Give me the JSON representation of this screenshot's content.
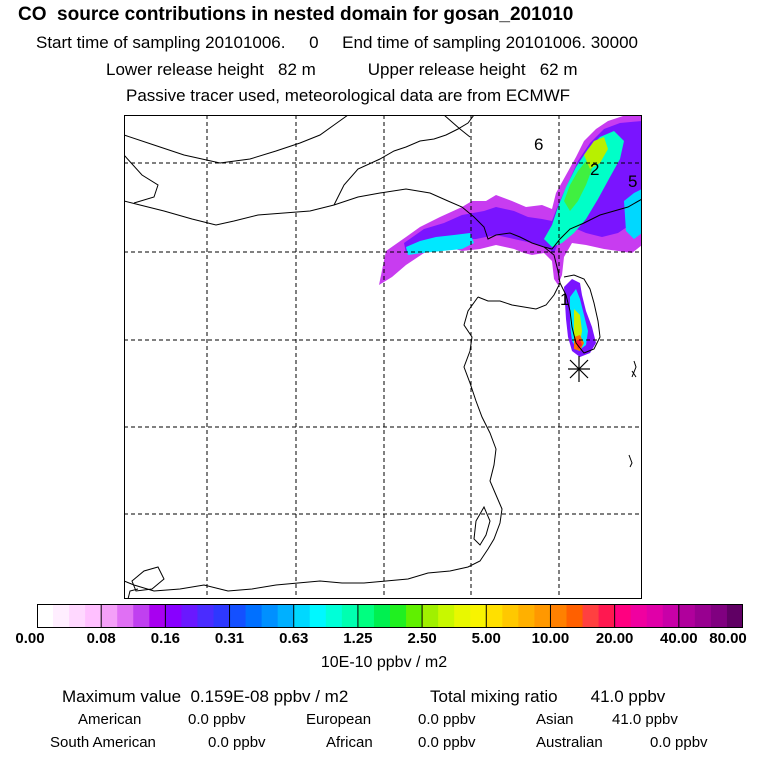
{
  "header": {
    "title": "CO  source contributions in nested domain for gosan_201010",
    "line1": "Start time of sampling 20101006.     0     End time of sampling 20101006. 30000",
    "line2": "Lower release height   82 m           Upper release height   62 m",
    "line3": "Passive tracer used, meteorological data are from ECMWF"
  },
  "map": {
    "region_labels": [
      "6",
      "2",
      "5",
      "1"
    ],
    "receptor_marker": "asterisk-icon"
  },
  "colorbar": {
    "tick_labels": [
      "0.00",
      "0.08",
      "0.16",
      "0.31",
      "0.63",
      "1.25",
      "2.50",
      "5.00",
      "10.00",
      "20.00",
      "40.00",
      "80.00"
    ],
    "colors": [
      "#ffffff",
      "#ffeeff",
      "#ffd8ff",
      "#ffc0ff",
      "#f4a0f8",
      "#e070f4",
      "#c040f0",
      "#a800f0",
      "#8800ff",
      "#6a18ff",
      "#4a2cff",
      "#2e38ff",
      "#1450ff",
      "#0070ff",
      "#0090ff",
      "#00b0ff",
      "#00d8ff",
      "#00f8ff",
      "#00ffd8",
      "#00ffb0",
      "#00ff80",
      "#00f050",
      "#20f020",
      "#60f000",
      "#a0f000",
      "#c8f800",
      "#e8f800",
      "#f8f400",
      "#ffe000",
      "#ffc800",
      "#ffb000",
      "#ff9800",
      "#ff8000",
      "#ff6000",
      "#ff4040",
      "#ff1850",
      "#ff0080",
      "#f000a0",
      "#e000a8",
      "#c800a8",
      "#b0009c",
      "#980090",
      "#800080",
      "#600064"
    ],
    "units": "10E-10 ppbv / m2"
  },
  "stats": {
    "max_value": "Maximum value  0.159E-08 ppbv / m2",
    "total": "Total mixing ratio       41.0 ppbv",
    "american_label": "American",
    "american_value": "0.0 ppbv",
    "european_label": "European",
    "european_value": "0.0 ppbv",
    "asian_label": "Asian",
    "asian_value": "41.0 ppbv",
    "south_american_label": "South American",
    "south_american_value": "0.0 ppbv",
    "african_label": "African",
    "african_value": "0.0 ppbv",
    "australian_label": "Australian",
    "australian_value": "0.0 ppbv"
  }
}
